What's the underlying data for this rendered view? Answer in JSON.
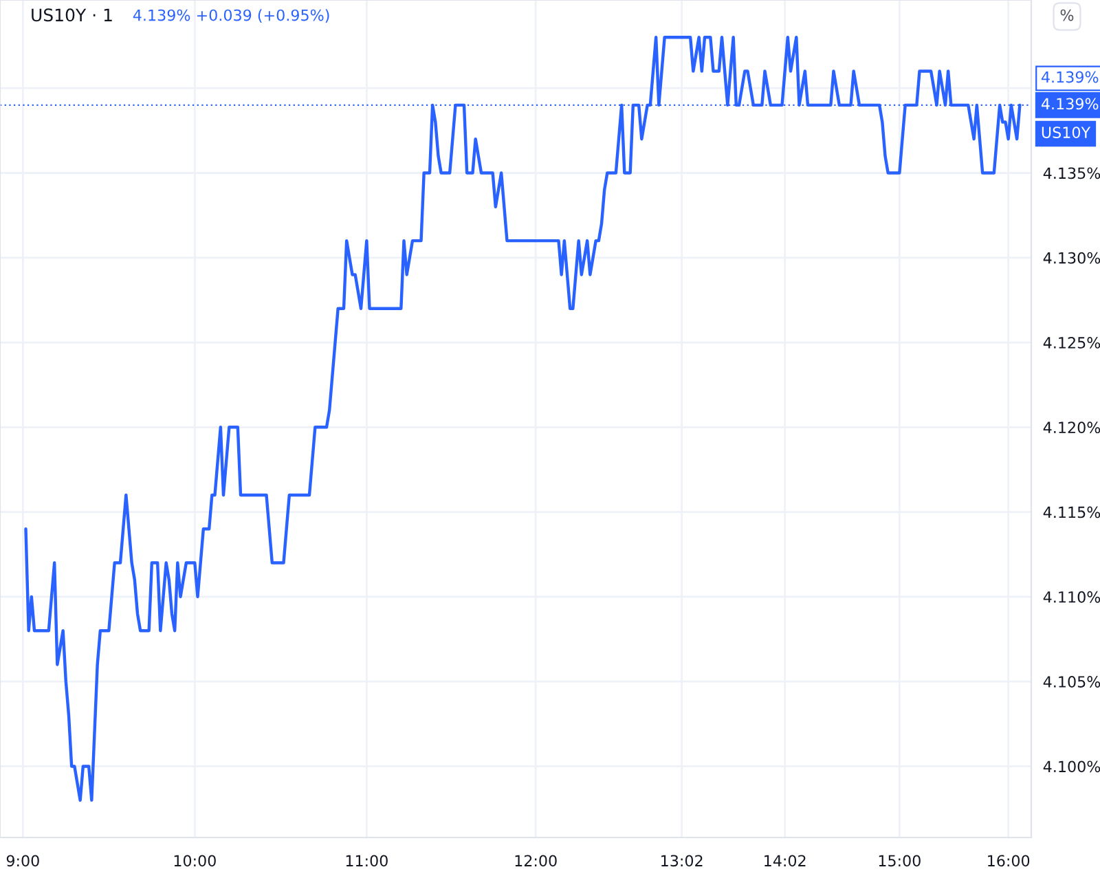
{
  "chart_data": {
    "type": "line",
    "title": "US10Y · 1",
    "subtitle": "4.139% +0.039 (+0.95%)",
    "annotations": [
      "4.139%",
      "%"
    ],
    "categories": [
      "9:00",
      null,
      null,
      null,
      null,
      null,
      null,
      null,
      null,
      null,
      null,
      null,
      null,
      null,
      null,
      null,
      null,
      null,
      null,
      null,
      null,
      null,
      null,
      null,
      null,
      null,
      null,
      null,
      null,
      null,
      null,
      null,
      null,
      null,
      null,
      null,
      null,
      null,
      null,
      null,
      null,
      null,
      null,
      null,
      null,
      null,
      null,
      null,
      null,
      null,
      null,
      null,
      null,
      null,
      null,
      null,
      null,
      null,
      null,
      null,
      "10:00",
      null,
      null,
      null,
      null,
      null,
      null,
      null,
      null,
      null,
      null,
      null,
      null,
      null,
      null,
      null,
      null,
      null,
      null,
      null,
      null,
      null,
      null,
      null,
      null,
      null,
      null,
      null,
      null,
      null,
      null,
      null,
      null,
      null,
      null,
      null,
      null,
      null,
      null,
      null,
      null,
      null,
      null,
      null,
      null,
      null,
      null,
      null,
      null,
      null,
      null,
      null,
      null,
      null,
      null,
      null,
      null,
      null,
      null,
      null,
      "11:00",
      null,
      null,
      null,
      null,
      null,
      null,
      null,
      null,
      null,
      null,
      null,
      null,
      null,
      null,
      null,
      null,
      null,
      null,
      null,
      null,
      null,
      null,
      null,
      null,
      null,
      null,
      null,
      null,
      null,
      null,
      null,
      null,
      null,
      null,
      null,
      null,
      null,
      null,
      null,
      null,
      null,
      null,
      null,
      null,
      null,
      null,
      null,
      null,
      null,
      null,
      null,
      null,
      null,
      null,
      null,
      null,
      null,
      null,
      "12:00",
      null,
      null,
      null,
      null,
      null,
      null,
      null,
      null,
      null,
      null,
      null,
      null,
      null,
      null,
      null,
      null,
      null,
      null,
      null,
      null,
      null,
      null,
      null,
      null,
      null,
      null,
      null,
      null,
      null,
      null,
      null,
      null,
      null,
      null,
      null,
      null,
      null,
      null,
      null,
      null,
      null,
      null,
      null,
      null,
      null,
      null,
      null,
      null,
      null,
      null,
      "13:02",
      null,
      null,
      null,
      null,
      null,
      null,
      null,
      null,
      null,
      null,
      null,
      null,
      null,
      null,
      null,
      null,
      null,
      null,
      null,
      null,
      null,
      null,
      null,
      null,
      null,
      null,
      null,
      null,
      null,
      null,
      null,
      null,
      null,
      null,
      null,
      "14:02",
      null,
      null,
      null,
      null,
      null,
      null,
      null,
      null,
      null,
      null,
      null,
      null,
      null,
      null,
      null,
      null,
      null,
      null,
      null,
      null,
      null,
      null,
      null,
      null,
      null,
      null,
      null,
      null,
      null,
      null,
      null,
      null,
      null,
      null,
      null,
      null,
      null,
      null,
      null,
      "15:00",
      null,
      null,
      null,
      null,
      null,
      null,
      null,
      null,
      null,
      null,
      null,
      null,
      null,
      null,
      null,
      null,
      null,
      null,
      null,
      null,
      null,
      null,
      null,
      null,
      null,
      null,
      null,
      null,
      null,
      null,
      null,
      null,
      null,
      null,
      null,
      null,
      null,
      "16:00",
      null,
      null,
      null,
      null
    ],
    "ylim": [
      4.0958,
      4.1452
    ],
    "yticks": [
      {
        "value": 4.1,
        "label": "4.100%"
      },
      {
        "value": 4.105,
        "label": "4.105%"
      },
      {
        "value": 4.11,
        "label": "4.110%"
      },
      {
        "value": 4.115,
        "label": "4.115%"
      },
      {
        "value": 4.12,
        "label": "4.120%"
      },
      {
        "value": 4.125,
        "label": "4.125%"
      },
      {
        "value": 4.13,
        "label": "4.130%"
      },
      {
        "value": 4.135,
        "label": "4.135%"
      },
      {
        "value": 4.14,
        "label": null
      }
    ],
    "series": [
      {
        "name": "US10Y",
        "color": "#2962ff",
        "values": [
          null,
          4.114,
          4.108,
          4.11,
          4.108,
          4.108,
          4.108,
          4.108,
          4.108,
          4.108,
          4.11,
          4.112,
          4.106,
          4.107,
          4.108,
          4.105,
          4.103,
          4.1,
          4.1,
          4.099,
          4.098,
          4.1,
          4.1,
          4.1,
          4.098,
          4.102,
          4.106,
          4.108,
          4.108,
          4.108,
          4.108,
          4.11,
          4.112,
          4.112,
          4.112,
          4.114,
          4.116,
          4.114,
          4.112,
          4.111,
          4.109,
          4.108,
          4.108,
          4.108,
          4.108,
          4.112,
          4.112,
          4.112,
          4.108,
          4.11,
          4.112,
          4.111,
          4.109,
          4.108,
          4.112,
          4.11,
          4.111,
          4.112,
          4.112,
          4.112,
          4.112,
          4.11,
          4.112,
          4.114,
          4.114,
          4.114,
          4.116,
          4.116,
          4.118,
          4.12,
          4.116,
          4.118,
          4.12,
          4.12,
          4.12,
          4.12,
          4.116,
          4.116,
          4.116,
          4.116,
          4.116,
          4.116,
          4.116,
          4.116,
          4.116,
          4.116,
          4.114,
          4.112,
          4.112,
          4.112,
          4.112,
          4.112,
          4.114,
          4.116,
          4.116,
          4.116,
          4.116,
          4.116,
          4.116,
          4.116,
          4.116,
          4.118,
          4.12,
          4.12,
          4.12,
          4.12,
          4.12,
          4.121,
          4.123,
          4.125,
          4.127,
          4.127,
          4.127,
          4.131,
          4.13,
          4.129,
          4.129,
          4.128,
          4.127,
          4.129,
          4.131,
          4.127,
          4.127,
          4.127,
          4.127,
          4.127,
          4.127,
          4.127,
          4.127,
          4.127,
          4.127,
          4.127,
          4.127,
          4.131,
          4.129,
          4.13,
          4.131,
          4.131,
          4.131,
          4.131,
          4.135,
          4.135,
          4.135,
          4.139,
          4.138,
          4.136,
          4.135,
          4.135,
          4.135,
          4.135,
          4.137,
          4.139,
          4.139,
          4.139,
          4.139,
          4.135,
          4.135,
          4.135,
          4.137,
          4.136,
          4.135,
          4.135,
          4.135,
          4.135,
          4.135,
          4.133,
          4.134,
          4.135,
          4.133,
          4.131,
          4.131,
          4.131,
          4.131,
          4.131,
          4.131,
          4.131,
          4.131,
          4.131,
          4.131,
          4.131,
          4.131,
          4.131,
          4.131,
          4.131,
          4.131,
          4.131,
          4.131,
          4.131,
          4.129,
          4.131,
          4.129,
          4.127,
          4.127,
          4.129,
          4.131,
          4.129,
          4.13,
          4.131,
          4.129,
          4.13,
          4.131,
          4.131,
          4.132,
          4.134,
          4.135,
          4.135,
          4.135,
          4.135,
          4.137,
          4.139,
          4.135,
          4.135,
          4.135,
          4.139,
          4.139,
          4.139,
          4.137,
          4.138,
          4.139,
          4.139,
          4.141,
          4.143,
          4.139,
          4.141,
          4.143,
          4.143,
          4.143,
          4.143,
          4.143,
          4.143,
          4.143,
          4.143,
          4.143,
          4.143,
          4.141,
          4.142,
          4.143,
          4.141,
          4.143,
          4.143,
          4.143,
          4.141,
          4.141,
          4.141,
          4.143,
          4.141,
          4.139,
          4.141,
          4.143,
          4.139,
          4.139,
          4.14,
          4.141,
          4.141,
          4.14,
          4.139,
          4.139,
          4.139,
          4.139,
          4.141,
          4.14,
          4.139,
          4.139,
          4.139,
          4.139,
          4.139,
          4.141,
          4.143,
          4.141,
          4.142,
          4.143,
          4.139,
          4.14,
          4.141,
          4.139,
          4.139,
          4.139,
          4.139,
          4.139,
          4.139,
          4.139,
          4.139,
          4.139,
          4.141,
          4.14,
          4.139,
          4.139,
          4.139,
          4.139,
          4.139,
          4.141,
          4.14,
          4.139,
          4.139,
          4.139,
          4.139,
          4.139,
          4.139,
          4.139,
          4.139,
          4.138,
          4.136,
          4.135,
          4.135,
          4.135,
          4.135,
          4.135,
          4.137,
          4.139,
          4.139,
          4.139,
          4.139,
          4.139,
          4.141,
          4.141,
          4.141,
          4.141,
          4.141,
          4.14,
          4.139,
          4.141,
          4.14,
          4.139,
          4.141,
          4.139,
          4.139,
          4.139,
          4.139,
          4.139,
          4.139,
          4.139,
          4.138,
          4.137,
          4.139,
          4.137,
          4.135,
          4.135,
          4.135,
          4.135,
          4.135,
          4.137,
          4.139,
          4.138,
          4.138,
          4.137,
          4.139,
          4.138,
          4.137,
          4.139
        ]
      }
    ],
    "ref_lines": [
      {
        "axis": "y",
        "value": 4.139,
        "label": "4.139%",
        "color": "#2962ff",
        "line_style": "dotted"
      }
    ],
    "grid": true,
    "marker": "none",
    "line_style": "solid"
  }
}
